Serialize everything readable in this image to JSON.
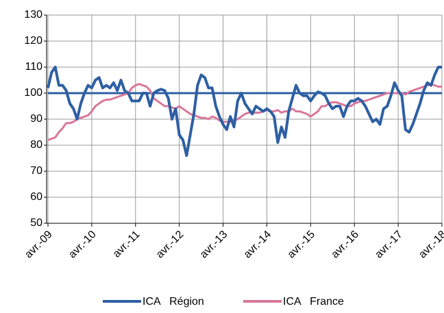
{
  "chart_data": {
    "type": "line",
    "categories": [
      "avr.-09",
      null,
      null,
      null,
      null,
      null,
      null,
      null,
      null,
      null,
      null,
      null,
      "avr.-10",
      null,
      null,
      null,
      null,
      null,
      null,
      null,
      null,
      null,
      null,
      null,
      "avr.-11",
      null,
      null,
      null,
      null,
      null,
      null,
      null,
      null,
      null,
      null,
      null,
      "avr.-12",
      null,
      null,
      null,
      null,
      null,
      null,
      null,
      null,
      null,
      null,
      null,
      "avr.-13",
      null,
      null,
      null,
      null,
      null,
      null,
      null,
      null,
      null,
      null,
      null,
      "avr.-14",
      null,
      null,
      null,
      null,
      null,
      null,
      null,
      null,
      null,
      null,
      null,
      "avr.-15",
      null,
      null,
      null,
      null,
      null,
      null,
      null,
      null,
      null,
      null,
      null,
      "avr.-16",
      null,
      null,
      null,
      null,
      null,
      null,
      null,
      null,
      null,
      null,
      null,
      "avr.-17",
      null,
      null,
      null,
      null,
      null,
      null,
      null,
      null,
      null,
      null,
      null,
      "avr.-18"
    ],
    "series": [
      {
        "name": "ICA   Région",
        "color": "#2e5fa3",
        "values": [
          102,
          108,
          110,
          103,
          103,
          101,
          96,
          94,
          90,
          96,
          100,
          103,
          102,
          105,
          106,
          102,
          103,
          102,
          104,
          101,
          105,
          101,
          100,
          97,
          97,
          97,
          100,
          100,
          95,
          100,
          101,
          101.5,
          101,
          98,
          90,
          94,
          84,
          82,
          76,
          84,
          92,
          103,
          107,
          106,
          102,
          102,
          95,
          91,
          88,
          86,
          91,
          87,
          97,
          100,
          96,
          94,
          92,
          95,
          94,
          93,
          94,
          93,
          91,
          81,
          87,
          83,
          93,
          98,
          103,
          100,
          99,
          99,
          97,
          99,
          100.5,
          100,
          99,
          96,
          94,
          95,
          95,
          91,
          95,
          97,
          97,
          98,
          97,
          95,
          92,
          89,
          90,
          88,
          94,
          95,
          99,
          104,
          101,
          99,
          86,
          85,
          88,
          92,
          96,
          101,
          104,
          103,
          107,
          110,
          110
        ]
      },
      {
        "name": "ICA   France",
        "color": "#d9779a",
        "values": [
          82,
          82.5,
          83,
          85,
          86.5,
          88.5,
          88.5,
          89,
          90,
          90.5,
          91,
          91.5,
          93,
          95,
          96,
          97,
          97.5,
          97.5,
          98,
          98.5,
          99,
          99.5,
          100,
          102,
          103,
          103.5,
          103,
          102.5,
          101,
          98,
          97,
          96,
          95,
          95,
          94.5,
          94,
          95,
          94,
          93,
          92,
          91.5,
          91,
          90.5,
          90.5,
          90,
          91,
          90.5,
          89.5,
          89,
          89,
          89,
          89.5,
          90,
          91,
          92,
          92.5,
          92.5,
          92.5,
          92.5,
          93,
          93.5,
          93,
          93,
          93.5,
          92.5,
          93,
          93,
          94,
          93,
          93,
          92.5,
          92,
          91,
          92,
          93,
          95,
          95,
          96,
          96.5,
          96.5,
          96,
          95.5,
          95,
          95,
          96,
          96.5,
          97,
          97,
          97.5,
          98,
          98.5,
          99,
          99.5,
          100,
          100,
          100,
          100,
          100,
          99.5,
          100.5,
          101,
          101.5,
          102,
          102.5,
          103,
          103.5,
          103,
          102.5,
          102.5
        ]
      }
    ],
    "reference_line": 100,
    "reference_color": "#2e5fa3",
    "ylim": [
      50,
      130
    ],
    "yticks": [
      50,
      60,
      70,
      80,
      90,
      100,
      110,
      120,
      130
    ],
    "grid": true
  }
}
